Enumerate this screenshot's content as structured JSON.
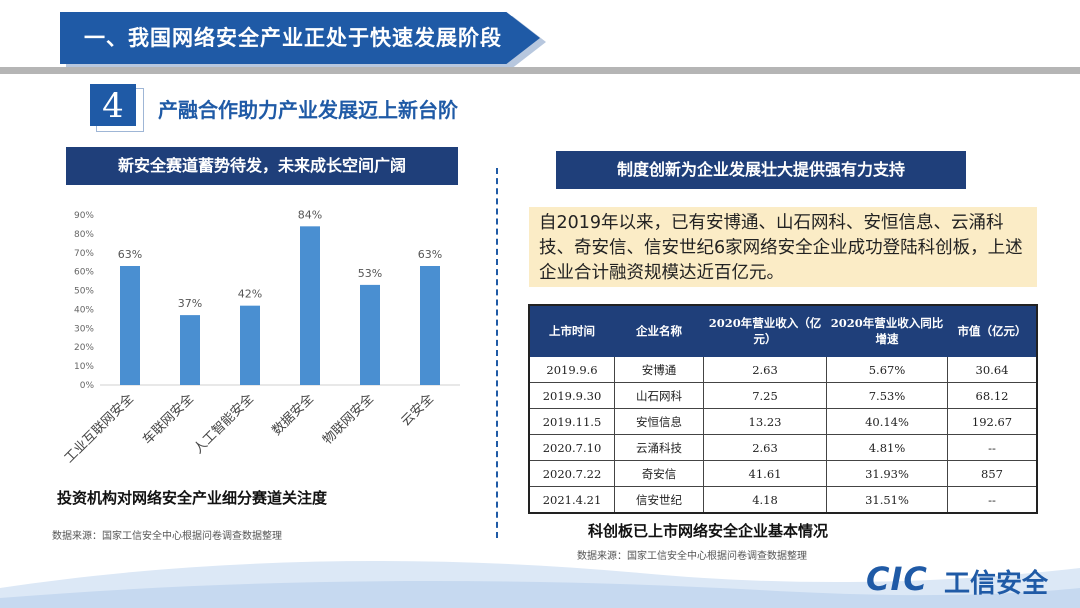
{
  "header": {
    "title": "一、我国网络安全产业正处于快速发展阶段"
  },
  "section": {
    "number": "4",
    "title": "产融合作助力产业发展迈上新台阶"
  },
  "left_panel": {
    "heading": "新安全赛道蓄势待发，未来成长空间广阔",
    "caption": "投资机构对网络安全产业细分赛道关注度",
    "source": "数据来源：国家工信安全中心根据问卷调查数据整理"
  },
  "right_panel": {
    "heading": "制度创新为企业发展壮大提供强有力支持",
    "info_text": "自2019年以来，已有安博通、山石网科、安恒信息、云涌科技、奇安信、信安世纪6家网络安全企业成功登陆科创板，上述企业合计融资规模达近百亿元。",
    "table": {
      "headers": [
        "上市时间",
        "企业名称",
        "2020年营业收入（亿元）",
        "2020年营业收入同比增速",
        "市值（亿元）"
      ],
      "rows": [
        [
          "2019.9.6",
          "安博通",
          "2.63",
          "5.67%",
          "30.64"
        ],
        [
          "2019.9.30",
          "山石网科",
          "7.25",
          "7.53%",
          "68.12"
        ],
        [
          "2019.11.5",
          "安恒信息",
          "13.23",
          "40.14%",
          "192.67"
        ],
        [
          "2020.7.10",
          "云涌科技",
          "2.63",
          "4.81%",
          "--"
        ],
        [
          "2020.7.22",
          "奇安信",
          "41.61",
          "31.93%",
          "857"
        ],
        [
          "2021.4.21",
          "信安世纪",
          "4.18",
          "31.51%",
          "--"
        ]
      ]
    },
    "caption": "科创板已上市网络安全企业基本情况",
    "source": "数据来源：国家工信安全中心根据问卷调查数据整理"
  },
  "logo": {
    "mark": "CIC",
    "name": "工信安全"
  },
  "colors": {
    "primary": "#1f5aa6",
    "dark": "#1f3f7a",
    "bar": "#4a8fd1",
    "highlight": "#fbecc6"
  },
  "chart_data": {
    "type": "bar",
    "categories": [
      "工业互联网安全",
      "车联网安全",
      "人工智能安全",
      "数据安全",
      "物联网安全",
      "云安全"
    ],
    "values": [
      63,
      37,
      42,
      84,
      53,
      63
    ],
    "value_labels": [
      "63%",
      "37%",
      "42%",
      "84%",
      "53%",
      "63%"
    ],
    "yticks": [
      "0%",
      "10%",
      "20%",
      "30%",
      "40%",
      "50%",
      "60%",
      "70%",
      "80%",
      "90%"
    ],
    "ylim": [
      0,
      90
    ],
    "grid": false,
    "legend": "none"
  }
}
